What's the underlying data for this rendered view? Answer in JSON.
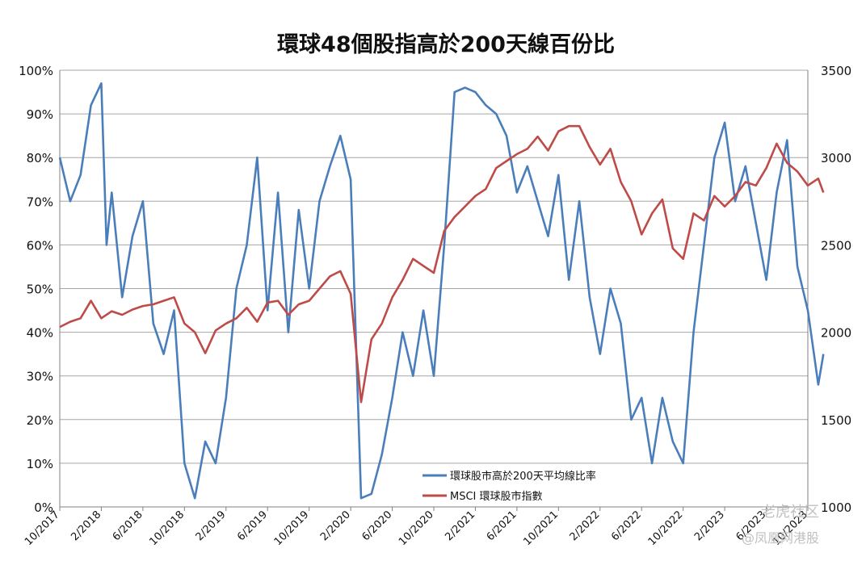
{
  "chart_data": {
    "type": "line",
    "title": "環球48個股指高於200天線百份比",
    "x_tick_labels": [
      "10/2017",
      "2/2018",
      "6/2018",
      "10/2018",
      "2/2019",
      "6/2019",
      "10/2019",
      "2/2020",
      "6/2020",
      "10/2020",
      "2/2021",
      "6/2021",
      "10/2021",
      "2/2022",
      "6/2022",
      "10/2022",
      "2/2023",
      "6/2023",
      "10/2023"
    ],
    "y_left": {
      "ticks": [
        "0%",
        "10%",
        "20%",
        "30%",
        "40%",
        "50%",
        "60%",
        "70%",
        "80%",
        "90%",
        "100%"
      ],
      "range": [
        0,
        100
      ]
    },
    "y_right": {
      "ticks": [
        "1000",
        "1500",
        "2000",
        "2500",
        "3000",
        "3500"
      ],
      "range": [
        1000,
        3500
      ]
    },
    "grid": true,
    "legend_position": "bottom-center",
    "series": [
      {
        "name": "環球股市高於200天平均線比率",
        "axis": "left",
        "color": "#4a7ebb",
        "unit": "%",
        "points": [
          [
            "10/2017",
            80
          ],
          [
            "11/2017",
            70
          ],
          [
            "12/2017",
            76
          ],
          [
            "1/2018",
            92
          ],
          [
            "2/2018",
            97
          ],
          [
            "2/2018",
            60
          ],
          [
            "3/2018",
            72
          ],
          [
            "4/2018",
            48
          ],
          [
            "5/2018",
            62
          ],
          [
            "6/2018",
            70
          ],
          [
            "7/2018",
            42
          ],
          [
            "8/2018",
            35
          ],
          [
            "9/2018",
            45
          ],
          [
            "10/2018",
            10
          ],
          [
            "11/2018",
            2
          ],
          [
            "12/2018",
            15
          ],
          [
            "1/2019",
            10
          ],
          [
            "2/2019",
            25
          ],
          [
            "3/2019",
            50
          ],
          [
            "4/2019",
            60
          ],
          [
            "5/2019",
            80
          ],
          [
            "6/2019",
            45
          ],
          [
            "7/2019",
            72
          ],
          [
            "8/2019",
            40
          ],
          [
            "9/2019",
            68
          ],
          [
            "10/2019",
            50
          ],
          [
            "11/2019",
            70
          ],
          [
            "12/2019",
            78
          ],
          [
            "1/2020",
            85
          ],
          [
            "2/2020",
            75
          ],
          [
            "3/2020",
            2
          ],
          [
            "4/2020",
            3
          ],
          [
            "5/2020",
            12
          ],
          [
            "6/2020",
            25
          ],
          [
            "7/2020",
            40
          ],
          [
            "8/2020",
            30
          ],
          [
            "9/2020",
            45
          ],
          [
            "10/2020",
            30
          ],
          [
            "11/2020",
            60
          ],
          [
            "12/2020",
            95
          ],
          [
            "1/2021",
            96
          ],
          [
            "2/2021",
            95
          ],
          [
            "3/2021",
            92
          ],
          [
            "4/2021",
            90
          ],
          [
            "5/2021",
            85
          ],
          [
            "6/2021",
            72
          ],
          [
            "7/2021",
            78
          ],
          [
            "8/2021",
            70
          ],
          [
            "9/2021",
            62
          ],
          [
            "10/2021",
            76
          ],
          [
            "11/2021",
            52
          ],
          [
            "12/2021",
            70
          ],
          [
            "1/2022",
            48
          ],
          [
            "2/2022",
            35
          ],
          [
            "3/2022",
            50
          ],
          [
            "4/2022",
            42
          ],
          [
            "5/2022",
            20
          ],
          [
            "6/2022",
            25
          ],
          [
            "7/2022",
            10
          ],
          [
            "8/2022",
            25
          ],
          [
            "9/2022",
            15
          ],
          [
            "10/2022",
            10
          ],
          [
            "11/2022",
            40
          ],
          [
            "12/2022",
            60
          ],
          [
            "1/2023",
            80
          ],
          [
            "2/2023",
            88
          ],
          [
            "3/2023",
            70
          ],
          [
            "4/2023",
            78
          ],
          [
            "5/2023",
            65
          ],
          [
            "6/2023",
            52
          ],
          [
            "7/2023",
            72
          ],
          [
            "8/2023",
            84
          ],
          [
            "9/2023",
            55
          ],
          [
            "10/2023",
            45
          ],
          [
            "11/2023",
            28
          ],
          [
            "11/2023",
            35
          ]
        ]
      },
      {
        "name": "MSCI 環球股市指數",
        "axis": "right",
        "color": "#be4b48",
        "unit": "",
        "points": [
          [
            "10/2017",
            2030
          ],
          [
            "11/2017",
            2060
          ],
          [
            "12/2017",
            2080
          ],
          [
            "1/2018",
            2180
          ],
          [
            "2/2018",
            2080
          ],
          [
            "3/2018",
            2120
          ],
          [
            "4/2018",
            2100
          ],
          [
            "5/2018",
            2130
          ],
          [
            "6/2018",
            2150
          ],
          [
            "7/2018",
            2160
          ],
          [
            "8/2018",
            2180
          ],
          [
            "9/2018",
            2200
          ],
          [
            "10/2018",
            2050
          ],
          [
            "11/2018",
            2000
          ],
          [
            "12/2018",
            1880
          ],
          [
            "1/2019",
            2010
          ],
          [
            "2/2019",
            2050
          ],
          [
            "3/2019",
            2080
          ],
          [
            "4/2019",
            2140
          ],
          [
            "5/2019",
            2060
          ],
          [
            "6/2019",
            2170
          ],
          [
            "7/2019",
            2180
          ],
          [
            "8/2019",
            2100
          ],
          [
            "9/2019",
            2160
          ],
          [
            "10/2019",
            2180
          ],
          [
            "11/2019",
            2250
          ],
          [
            "12/2019",
            2320
          ],
          [
            "1/2020",
            2350
          ],
          [
            "2/2020",
            2220
          ],
          [
            "3/2020",
            1600
          ],
          [
            "4/2020",
            1960
          ],
          [
            "5/2020",
            2050
          ],
          [
            "6/2020",
            2200
          ],
          [
            "7/2020",
            2300
          ],
          [
            "8/2020",
            2420
          ],
          [
            "9/2020",
            2380
          ],
          [
            "10/2020",
            2340
          ],
          [
            "11/2020",
            2580
          ],
          [
            "12/2020",
            2660
          ],
          [
            "1/2021",
            2720
          ],
          [
            "2/2021",
            2780
          ],
          [
            "3/2021",
            2820
          ],
          [
            "4/2021",
            2940
          ],
          [
            "5/2021",
            2980
          ],
          [
            "6/2021",
            3020
          ],
          [
            "7/2021",
            3050
          ],
          [
            "8/2021",
            3120
          ],
          [
            "9/2021",
            3040
          ],
          [
            "10/2021",
            3150
          ],
          [
            "11/2021",
            3180
          ],
          [
            "12/2021",
            3180
          ],
          [
            "1/2022",
            3060
          ],
          [
            "2/2022",
            2960
          ],
          [
            "3/2022",
            3050
          ],
          [
            "4/2022",
            2860
          ],
          [
            "5/2022",
            2750
          ],
          [
            "6/2022",
            2560
          ],
          [
            "7/2022",
            2680
          ],
          [
            "8/2022",
            2760
          ],
          [
            "9/2022",
            2480
          ],
          [
            "10/2022",
            2420
          ],
          [
            "11/2022",
            2680
          ],
          [
            "12/2022",
            2640
          ],
          [
            "1/2023",
            2780
          ],
          [
            "2/2023",
            2720
          ],
          [
            "3/2023",
            2780
          ],
          [
            "4/2023",
            2860
          ],
          [
            "5/2023",
            2840
          ],
          [
            "6/2023",
            2940
          ],
          [
            "7/2023",
            3080
          ],
          [
            "8/2023",
            2970
          ],
          [
            "9/2023",
            2920
          ],
          [
            "10/2023",
            2840
          ],
          [
            "11/2023",
            2880
          ],
          [
            "11/2023",
            2800
          ]
        ]
      }
    ]
  },
  "watermarks": [
    "老虎社区",
    "@凤凰网港股"
  ]
}
